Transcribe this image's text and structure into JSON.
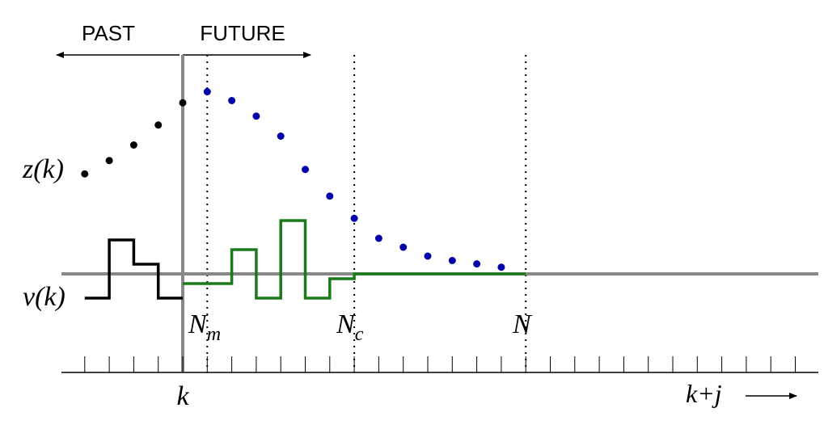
{
  "labels": {
    "past": "PAST",
    "future": "FUTURE",
    "z": "z(k)",
    "v": "v(k)",
    "k": "k",
    "nm_base": "N",
    "nm_sub": "m",
    "nc_base": "N",
    "nc_sub": "c",
    "n": "N",
    "kj": "k+j"
  },
  "colors": {
    "axis": "#888888",
    "past_signal": "#000000",
    "future_input": "#1a7a1a",
    "predicted": "#0000aa",
    "past_points": "#000000"
  },
  "chart_data": {
    "type": "step-and-scatter",
    "time_index": {
      "current": 0,
      "n_m": 1,
      "n_c": 7,
      "n": 14,
      "tick_range": [
        -5,
        30
      ]
    },
    "past_output_z": [
      {
        "j": -4,
        "z": 4.5
      },
      {
        "j": -3,
        "z": 5.1
      },
      {
        "j": -2,
        "z": 5.8
      },
      {
        "j": -1,
        "z": 6.7
      },
      {
        "j": 0,
        "z": 7.7
      }
    ],
    "predicted_output_z": [
      {
        "j": 1,
        "z": 8.2
      },
      {
        "j": 2,
        "z": 7.8
      },
      {
        "j": 3,
        "z": 7.1
      },
      {
        "j": 4,
        "z": 6.2
      },
      {
        "j": 5,
        "z": 4.7
      },
      {
        "j": 6,
        "z": 3.5
      },
      {
        "j": 7,
        "z": 2.5
      },
      {
        "j": 8,
        "z": 1.6
      },
      {
        "j": 9,
        "z": 1.2
      },
      {
        "j": 10,
        "z": 0.8
      },
      {
        "j": 11,
        "z": 0.6
      },
      {
        "j": 12,
        "z": 0.45
      },
      {
        "j": 13,
        "z": 0.3
      }
    ],
    "past_input_v": [
      {
        "j": -4,
        "v": -1.0
      },
      {
        "j": -3,
        "v": 1.4
      },
      {
        "j": -2,
        "v": 0.4
      },
      {
        "j": -1,
        "v": -1.0
      }
    ],
    "future_input_v": [
      {
        "j": 0,
        "v": -0.4
      },
      {
        "j": 1,
        "v": -0.4
      },
      {
        "j": 2,
        "v": 1.0
      },
      {
        "j": 3,
        "v": -1.0
      },
      {
        "j": 4,
        "v": 2.2
      },
      {
        "j": 5,
        "v": -1.0
      },
      {
        "j": 6,
        "v": -0.2
      },
      {
        "j": 7,
        "v": 0.0
      }
    ]
  }
}
